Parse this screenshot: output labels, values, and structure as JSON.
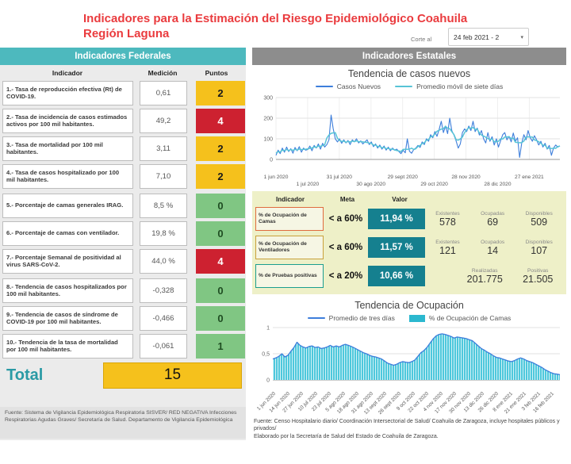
{
  "title": {
    "line1": "Indicadores para la Estimación del Riesgo Epidemiológico Coahuila",
    "line2": "Región Laguna"
  },
  "date_filter": {
    "label": "Corte al",
    "value": "24 feb 2021 - 2",
    "caret": "▾"
  },
  "federal": {
    "header": "Indicadores Federales",
    "columns": {
      "indicador": "Indicador",
      "medicion": "Medición",
      "puntos": "Puntos"
    },
    "rows": [
      {
        "indicador": "1.- Tasa de reproducción efectiva (Rt) de COVID-19.",
        "medicion": "0,61",
        "puntos": "2",
        "nivel": "amarillo"
      },
      {
        "indicador": "2.- Tasa de incidencia de casos estimados activos por 100 mil habitantes.",
        "medicion": "49,2",
        "puntos": "4",
        "nivel": "rojo"
      },
      {
        "indicador": "3.- Tasa de mortalidad por 100 mil habitantes.",
        "medicion": "3,11",
        "puntos": "2",
        "nivel": "amarillo"
      },
      {
        "indicador": "4.- Tasa de casos hospitalizado por 100 mil habitantes.",
        "medicion": "7,10",
        "puntos": "2",
        "nivel": "amarillo"
      },
      {
        "indicador": "5.- Porcentaje de camas generales IRAG.",
        "medicion": "8,5 %",
        "puntos": "0",
        "nivel": "verde"
      },
      {
        "indicador": "6.- Porcentaje de camas con ventilador.",
        "medicion": "19,8 %",
        "puntos": "0",
        "nivel": "verde"
      },
      {
        "indicador": "7.- Porcentaje Semanal de positividad al virus SARS-CoV-2.",
        "medicion": "44,0 %",
        "puntos": "4",
        "nivel": "rojo"
      },
      {
        "indicador": "8.- Tendencia de casos hospitalizados por 100 mil habitantes.",
        "medicion": "-0,328",
        "puntos": "0",
        "nivel": "verde"
      },
      {
        "indicador": "9.- Tendencia de casos de síndrome de COVID-19 por  100 mil habitantes.",
        "medicion": "-0,466",
        "puntos": "0",
        "nivel": "verde"
      },
      {
        "indicador": "10.- Tendencia de la tasa de mortalidad por 100 mil habitantes.",
        "medicion": "-0,061",
        "puntos": "1",
        "nivel": "verde"
      }
    ],
    "total_label": "Total",
    "total_value": "15",
    "source": "Fuente: Sistema de Vigilancia Epidemiológica Respiratoria SISVER/ RED NEGATIVA Infecciones Respiratorias Agudas Graves/ Secretaría de Salud. Departamento de Vigilancia Epidemiológica"
  },
  "estatal": {
    "header": "Indicadores Estatales",
    "metas": {
      "columns": {
        "indicador": "Indicador",
        "meta": "Meta",
        "valor": "Valor"
      },
      "rows": [
        {
          "indicador": "% de Ocupación de Camas",
          "meta": "< a 60%",
          "valor": "11,94 %",
          "stats": [
            {
              "label": "Existentes",
              "value": "578"
            },
            {
              "label": "Ocupadas",
              "value": "69"
            },
            {
              "label": "Disponibles",
              "value": "509"
            }
          ]
        },
        {
          "indicador": "% de Ocupación de Ventiladores",
          "meta": "< a 60%",
          "valor": "11,57 %",
          "stats": [
            {
              "label": "Existentes",
              "value": "121"
            },
            {
              "label": "Ocupados",
              "value": "14"
            },
            {
              "label": "Disponibles",
              "value": "107"
            }
          ]
        },
        {
          "indicador": "% de Pruebas positivas",
          "meta": "< a 20%",
          "valor": "10,66 %",
          "stats": [
            {
              "label": "Realizadas",
              "value": "201.775"
            },
            {
              "label": "Positivas",
              "value": "21.505"
            }
          ]
        }
      ]
    },
    "source_line1": "Fuente: Censo Hospitalario diario/ Coordinación Intersectorial de Salud/ Coahuila de Zaragoza, incluye hospitales públicos y privados/",
    "source_line2": "Elaborado por la Secretaría de Salud del Estado de Coahuila de Zaragoza."
  },
  "chart_data": [
    {
      "type": "line",
      "title": "Tendencia de casos nuevos",
      "legend": [
        "Casos Nuevos",
        "Promedio móvil de siete días"
      ],
      "ylim": [
        0,
        300
      ],
      "yticks": [
        0,
        100,
        200,
        300
      ],
      "xticks": [
        "1 jun 2020",
        "1 jul 2020",
        "31 jul 2020",
        "30 ago 2020",
        "29 sept 2020",
        "29 oct 2020",
        "28 nov 2020",
        "28 dic 2020",
        "27 ene 2021"
      ],
      "x_span_days": 269,
      "xtick_step_days": 30,
      "grid": true,
      "legend_position": "top",
      "series": [
        {
          "name": "Casos Nuevos",
          "values": [
            20,
            45,
            28,
            55,
            35,
            60,
            38,
            52,
            30,
            58,
            42,
            62,
            35,
            55,
            45,
            48,
            65,
            42,
            68,
            55,
            75,
            50,
            78,
            60,
            72,
            95,
            215,
            150,
            100,
            85,
            100,
            78,
            95,
            80,
            92,
            72,
            95,
            85,
            100,
            80,
            90,
            75,
            85,
            95,
            72,
            85,
            62,
            75,
            55,
            70,
            50,
            65,
            45,
            60,
            42,
            55,
            45,
            50,
            38,
            28,
            45,
            32,
            100,
            40,
            30,
            48,
            55,
            68,
            58,
            85,
            72,
            100,
            88,
            120,
            105,
            135,
            112,
            145,
            185,
            130,
            162,
            125,
            200,
            140,
            118,
            90,
            55,
            75,
            130,
            148,
            135,
            162,
            140,
            185,
            135,
            152,
            118,
            140,
            100,
            80,
            130,
            88,
            110,
            70,
            100,
            60,
            90,
            120,
            130,
            95,
            112,
            85,
            128,
            88,
            105,
            10,
            80,
            120,
            95,
            140,
            105,
            88,
            115,
            95,
            70,
            88,
            60,
            78,
            50,
            68,
            20,
            55,
            70,
            60,
            65
          ]
        },
        {
          "name": "Promedio móvil de siete días",
          "derived_from": "Casos Nuevos",
          "window_days": 7
        }
      ]
    },
    {
      "type": "area",
      "title": "Tendencia de Ocupación",
      "legend": [
        "Promedio de tres días",
        "% de Ocupación de Camas"
      ],
      "ylim": [
        0,
        1
      ],
      "yticks": [
        0,
        0.5,
        1
      ],
      "ytick_labels": [
        "0",
        "0,5",
        "1"
      ],
      "xticks": [
        "1 jun 2020",
        "14 jun 2020",
        "27 jun 2020",
        "10 jul 2020",
        "23 jul 2020",
        "5 ago 2020",
        "18 ago 2020",
        "31 ago 2020",
        "13 sept 2020",
        "26 sept 2020",
        "9 oct 2020",
        "22 oct 2020",
        "4 nov 2020",
        "17 nov 2020",
        "30 nov 2020",
        "13 dic 2020",
        "26 dic 2020",
        "8 ene 2021",
        "21 ene 2021",
        "3 feb 2021",
        "16 feb 2021"
      ],
      "x_span_days": 268,
      "xtick_step_days": 13,
      "grid": true,
      "legend_position": "top",
      "values": [
        0.4,
        0.42,
        0.45,
        0.5,
        0.44,
        0.47,
        0.55,
        0.62,
        0.72,
        0.66,
        0.63,
        0.61,
        0.64,
        0.65,
        0.62,
        0.63,
        0.6,
        0.61,
        0.63,
        0.66,
        0.63,
        0.65,
        0.63,
        0.66,
        0.68,
        0.66,
        0.64,
        0.61,
        0.58,
        0.55,
        0.52,
        0.5,
        0.47,
        0.45,
        0.44,
        0.42,
        0.4,
        0.36,
        0.32,
        0.3,
        0.28,
        0.3,
        0.33,
        0.35,
        0.34,
        0.33,
        0.35,
        0.38,
        0.45,
        0.52,
        0.56,
        0.62,
        0.7,
        0.78,
        0.84,
        0.87,
        0.88,
        0.87,
        0.85,
        0.83,
        0.8,
        0.82,
        0.81,
        0.8,
        0.79,
        0.77,
        0.75,
        0.7,
        0.65,
        0.6,
        0.57,
        0.53,
        0.5,
        0.46,
        0.43,
        0.42,
        0.4,
        0.38,
        0.36,
        0.35,
        0.37,
        0.4,
        0.42,
        0.4,
        0.37,
        0.35,
        0.33,
        0.3,
        0.27,
        0.24,
        0.2,
        0.17,
        0.14,
        0.12,
        0.11,
        0.1
      ]
    }
  ],
  "colors": {
    "title_red": "#ea3b3e",
    "federal_header_teal": "#4db9be",
    "estatal_header_gray": "#8d8d8d",
    "badge_amarillo": "#f5c11c",
    "badge_rojo": "#cd2130",
    "badge_verde": "#80c683",
    "valor_teal": "#15808f",
    "metas_bg": "#eef0c8",
    "line_blue": "#3d7edb",
    "line_cyan": "#57c4d6",
    "area_cyan": "#4ec8dc",
    "border_camas": "#e06b3e",
    "border_ventiladores": "#c9a13b",
    "border_pruebas": "#1b9e8f"
  }
}
